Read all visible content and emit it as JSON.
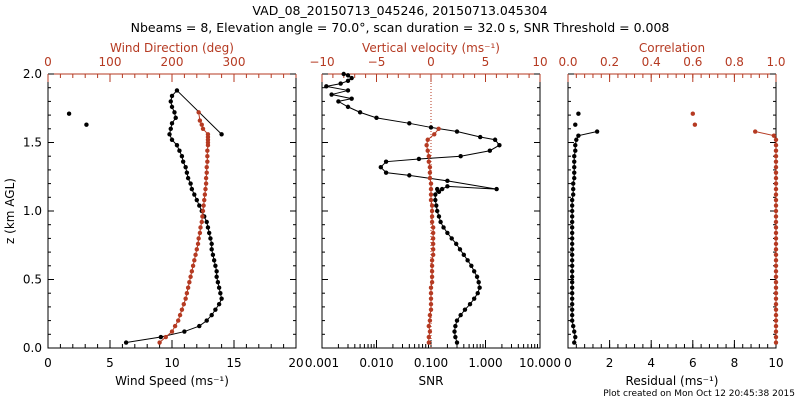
{
  "title": {
    "line1": "VAD_08_20150713_045246, 20150713.045304",
    "line2": "Nbeams = 8, Elevation angle = 70.0°, scan duration = 32.0 s, SNR Threshold = 0.008"
  },
  "footer": "Plot created on Mon Oct 12 20:45:38 2015",
  "colors": {
    "black": "#000000",
    "red": "#b53a22"
  },
  "chart_data": [
    {
      "type": "line",
      "panel": "wind",
      "ylabel": "z (km AGL)",
      "ylim": [
        0,
        2.0
      ],
      "yticks": [
        "0.0",
        "0.5",
        "1.0",
        "1.5",
        "2.0"
      ],
      "bottom_axis": {
        "label": "Wind Speed (ms⁻¹)",
        "lim": [
          0,
          20
        ],
        "scale": "linear",
        "ticks": [
          "0",
          "5",
          "10",
          "15",
          "20"
        ]
      },
      "top_axis": {
        "label": "Wind Direction (deg)",
        "lim": [
          0,
          400
        ],
        "scale": "linear",
        "ticks": [
          "0",
          "100",
          "200",
          "300"
        ]
      },
      "series": [
        {
          "name": "Wind Speed",
          "axis": "bottom",
          "color": "#000000",
          "x": [
            6.3,
            9.1,
            11.0,
            12.2,
            12.8,
            13.2,
            13.5,
            13.8,
            14.0,
            13.9,
            13.8,
            13.7,
            13.6,
            13.6,
            13.5,
            13.4,
            13.3,
            13.2,
            13.2,
            13.1,
            13.0,
            12.9,
            12.8,
            12.6,
            12.4,
            12.2,
            12.0,
            11.8,
            11.6,
            11.5,
            11.3,
            11.2,
            11.1,
            10.9,
            10.8,
            10.6,
            10.4,
            10.0,
            9.8,
            9.9,
            10.0,
            10.3,
            10.2,
            10.0,
            9.9,
            10.0,
            10.4,
            14.0
          ],
          "y": [
            0.04,
            0.08,
            0.12,
            0.16,
            0.2,
            0.24,
            0.28,
            0.32,
            0.36,
            0.4,
            0.44,
            0.48,
            0.52,
            0.56,
            0.6,
            0.64,
            0.68,
            0.72,
            0.76,
            0.8,
            0.84,
            0.88,
            0.92,
            0.96,
            1.0,
            1.04,
            1.08,
            1.12,
            1.16,
            1.2,
            1.24,
            1.28,
            1.32,
            1.36,
            1.4,
            1.44,
            1.48,
            1.52,
            1.56,
            1.6,
            1.64,
            1.68,
            1.72,
            1.76,
            1.8,
            1.84,
            1.88,
            1.56
          ]
        },
        {
          "name": "Wind Direction",
          "axis": "top",
          "color": "#b53a22",
          "x": [
            180,
            190,
            200,
            205,
            210,
            213,
            216,
            219,
            222,
            224,
            226,
            228,
            230,
            232,
            234,
            236,
            238,
            240,
            242,
            243,
            245,
            246,
            248,
            249,
            250,
            251,
            252,
            253,
            254,
            255,
            255,
            256,
            256,
            257,
            257,
            257,
            258,
            258,
            258,
            258,
            258,
            250,
            248,
            245,
            243
          ],
          "y": [
            0.04,
            0.08,
            0.12,
            0.16,
            0.2,
            0.24,
            0.28,
            0.32,
            0.36,
            0.4,
            0.44,
            0.48,
            0.52,
            0.56,
            0.6,
            0.64,
            0.68,
            0.72,
            0.76,
            0.8,
            0.84,
            0.88,
            0.92,
            0.96,
            1.0,
            1.04,
            1.08,
            1.12,
            1.16,
            1.2,
            1.24,
            1.28,
            1.32,
            1.36,
            1.4,
            1.44,
            1.48,
            1.5,
            1.52,
            1.54,
            1.56,
            1.6,
            1.63,
            1.66,
            1.72
          ]
        },
        {
          "name": "Wind Speed (isolated)",
          "axis": "bottom",
          "color": "#000000",
          "points": [
            [
              1.7,
              1.71
            ],
            [
              3.1,
              1.63
            ]
          ]
        }
      ]
    },
    {
      "type": "line",
      "panel": "vertical",
      "ylim": [
        0,
        2.0
      ],
      "bottom_axis": {
        "label": "SNR",
        "lim": [
          0.001,
          10
        ],
        "scale": "log",
        "ticks": [
          "0.001",
          "0.010",
          "0.100",
          "1.000",
          "10.000"
        ]
      },
      "top_axis": {
        "label": "Vertical velocity (ms⁻¹)",
        "lim": [
          -10,
          10
        ],
        "scale": "linear",
        "ticks": [
          "−10",
          "−5",
          "0",
          "5",
          "10"
        ]
      },
      "reference_line_top_x": 0,
      "series": [
        {
          "name": "SNR",
          "axis": "bottom",
          "color": "#000000",
          "x": [
            0.3,
            0.28,
            0.27,
            0.28,
            0.3,
            0.35,
            0.42,
            0.52,
            0.62,
            0.72,
            0.78,
            0.75,
            0.7,
            0.62,
            0.55,
            0.47,
            0.4,
            0.34,
            0.29,
            0.24,
            0.2,
            0.17,
            0.15,
            0.14,
            0.13,
            0.125,
            0.12,
            0.12,
            0.13,
            0.14,
            0.16,
            0.2,
            1.6,
            0.2,
            0.04,
            0.015,
            0.012,
            0.015,
            0.06,
            0.35,
            1.2,
            1.8,
            1.5,
            0.8,
            0.3,
            0.1,
            0.04,
            0.01,
            0.005,
            0.003,
            0.002,
            0.0035,
            0.0015,
            0.003,
            0.0012,
            0.0022,
            0.003,
            0.0035,
            0.003,
            0.0025
          ],
          "y": [
            0.04,
            0.08,
            0.12,
            0.16,
            0.2,
            0.24,
            0.28,
            0.32,
            0.36,
            0.4,
            0.44,
            0.48,
            0.52,
            0.56,
            0.6,
            0.64,
            0.68,
            0.72,
            0.76,
            0.8,
            0.84,
            0.88,
            0.92,
            0.96,
            1.0,
            1.04,
            1.08,
            1.12,
            1.16,
            1.14,
            1.16,
            1.18,
            1.16,
            1.22,
            1.26,
            1.28,
            1.32,
            1.36,
            1.38,
            1.4,
            1.44,
            1.48,
            1.52,
            1.54,
            1.58,
            1.61,
            1.64,
            1.68,
            1.72,
            1.76,
            1.8,
            1.82,
            1.85,
            1.88,
            1.91,
            1.93,
            1.95,
            1.97,
            1.99,
            2.0
          ]
        },
        {
          "name": "Vertical velocity",
          "axis": "top",
          "color": "#b53a22",
          "x": [
            -0.2,
            -0.2,
            -0.1,
            -0.2,
            -0.1,
            -0.1,
            0.0,
            0.0,
            0.0,
            0.0,
            0.0,
            0.1,
            0.1,
            0.1,
            0.1,
            0.1,
            0.2,
            0.2,
            0.2,
            0.2,
            0.2,
            0.2,
            0.1,
            0.1,
            0.1,
            0.1,
            0.0,
            0.0,
            0.0,
            0.0,
            -0.1,
            -0.1,
            -0.1,
            -0.2,
            -0.2,
            -0.3,
            -0.4,
            -0.3,
            0.3,
            0.7
          ],
          "y": [
            0.04,
            0.08,
            0.12,
            0.16,
            0.2,
            0.24,
            0.28,
            0.32,
            0.36,
            0.4,
            0.44,
            0.48,
            0.52,
            0.56,
            0.6,
            0.64,
            0.68,
            0.72,
            0.76,
            0.8,
            0.84,
            0.88,
            0.92,
            0.96,
            1.0,
            1.04,
            1.08,
            1.12,
            1.16,
            1.2,
            1.24,
            1.28,
            1.32,
            1.36,
            1.4,
            1.44,
            1.48,
            1.52,
            1.56,
            1.6
          ]
        }
      ]
    },
    {
      "type": "line",
      "panel": "residual",
      "ylim": [
        0,
        2.0
      ],
      "bottom_axis": {
        "label": "Residual (ms⁻¹)",
        "lim": [
          0,
          10
        ],
        "scale": "linear",
        "ticks": [
          "0",
          "2",
          "4",
          "6",
          "8",
          "10"
        ]
      },
      "top_axis": {
        "label": "Correlation",
        "lim": [
          0,
          1.0
        ],
        "scale": "linear",
        "ticks": [
          "0.0",
          "0.2",
          "0.4",
          "0.6",
          "0.8",
          "1.0"
        ]
      },
      "series": [
        {
          "name": "Residual",
          "axis": "bottom",
          "color": "#000000",
          "x": [
            0.3,
            0.35,
            0.3,
            0.25,
            0.2,
            0.2,
            0.2,
            0.2,
            0.2,
            0.2,
            0.2,
            0.2,
            0.2,
            0.2,
            0.2,
            0.2,
            0.2,
            0.2,
            0.2,
            0.2,
            0.2,
            0.2,
            0.2,
            0.2,
            0.2,
            0.2,
            0.2,
            0.25,
            0.25,
            0.25,
            0.3,
            0.3,
            0.3,
            0.3,
            0.3,
            0.35,
            0.35,
            0.4,
            0.5,
            1.4
          ],
          "y": [
            0.04,
            0.08,
            0.12,
            0.16,
            0.2,
            0.24,
            0.28,
            0.32,
            0.36,
            0.4,
            0.44,
            0.48,
            0.52,
            0.56,
            0.6,
            0.64,
            0.68,
            0.72,
            0.76,
            0.8,
            0.84,
            0.88,
            0.92,
            0.96,
            1.0,
            1.04,
            1.08,
            1.12,
            1.16,
            1.2,
            1.24,
            1.28,
            1.32,
            1.36,
            1.4,
            1.44,
            1.48,
            1.52,
            1.55,
            1.58
          ]
        },
        {
          "name": "Residual (isolated)",
          "axis": "bottom",
          "color": "#000000",
          "points": [
            [
              0.5,
              1.71
            ],
            [
              0.35,
              1.63
            ]
          ]
        },
        {
          "name": "Correlation",
          "axis": "top",
          "color": "#b53a22",
          "x": [
            1.0,
            1.0,
            1.0,
            1.0,
            1.0,
            1.0,
            1.0,
            1.0,
            1.0,
            1.0,
            1.0,
            1.0,
            1.0,
            1.0,
            1.0,
            1.0,
            1.0,
            1.0,
            1.0,
            1.0,
            1.0,
            1.0,
            1.0,
            1.0,
            1.0,
            1.0,
            1.0,
            1.0,
            1.0,
            1.0,
            1.0,
            1.0,
            1.0,
            1.0,
            1.0,
            1.0,
            1.0,
            1.0,
            0.99,
            0.9
          ],
          "y": [
            0.04,
            0.08,
            0.12,
            0.16,
            0.2,
            0.24,
            0.28,
            0.32,
            0.36,
            0.4,
            0.44,
            0.48,
            0.52,
            0.56,
            0.6,
            0.64,
            0.68,
            0.72,
            0.76,
            0.8,
            0.84,
            0.88,
            0.92,
            0.96,
            1.0,
            1.04,
            1.08,
            1.12,
            1.16,
            1.2,
            1.24,
            1.28,
            1.32,
            1.36,
            1.4,
            1.44,
            1.48,
            1.52,
            1.55,
            1.58
          ]
        },
        {
          "name": "Correlation (isolated)",
          "axis": "top",
          "color": "#b53a22",
          "points": [
            [
              0.6,
              1.71
            ],
            [
              0.61,
              1.63
            ]
          ]
        }
      ]
    }
  ]
}
